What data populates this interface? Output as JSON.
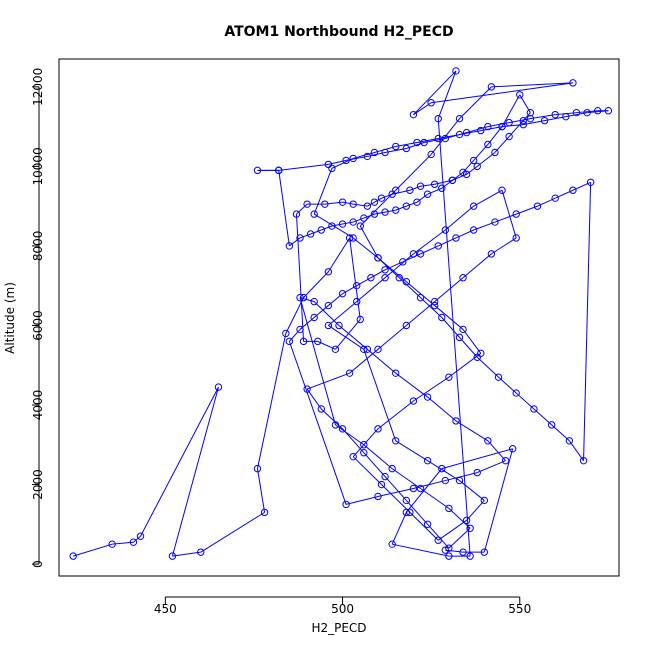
{
  "chart_data": {
    "type": "line",
    "title": "ATOM1 Northbound H2_PECD",
    "xlabel": "H2_PECD",
    "ylabel": "Altitude (m)",
    "xlim": [
      420,
      578
    ],
    "ylim": [
      -300,
      12700
    ],
    "xticks": [
      450,
      500,
      550
    ],
    "yticks": [
      0,
      2000,
      4000,
      6000,
      8000,
      10000,
      12000
    ],
    "marker": "open-circle",
    "grid": false,
    "series_color": "#0000ff",
    "series": [
      {
        "x": [
          424,
          435,
          441,
          443,
          465,
          452,
          460,
          478,
          476,
          484,
          489,
          496,
          502,
          505,
          498,
          493,
          489,
          487,
          490,
          495,
          500,
          503,
          507,
          509,
          511,
          514,
          519,
          522,
          526,
          531,
          535,
          538,
          543,
          547,
          551,
          553,
          550,
          545,
          541,
          537,
          534,
          531,
          528,
          524,
          521,
          518,
          515,
          512,
          509,
          506,
          503,
          500,
          497,
          494,
          491,
          488,
          485,
          482,
          476,
          482,
          496,
          501,
          507,
          512,
          518,
          523,
          529,
          535,
          541,
          547,
          553,
          560,
          566,
          572,
          575,
          569,
          563,
          557,
          551,
          545,
          539,
          533,
          527,
          521,
          515,
          509,
          503,
          497,
          492,
          503,
          510,
          516,
          522,
          528,
          533,
          538,
          544,
          549,
          554,
          559,
          564,
          568,
          570,
          565,
          560,
          555,
          549,
          543,
          537,
          532,
          527,
          522,
          517,
          512,
          508,
          504,
          500,
          496,
          492,
          488,
          485,
          501,
          510,
          520,
          529,
          538,
          546,
          541,
          532,
          524,
          515,
          507,
          499,
          492,
          488,
          498,
          506,
          514,
          522,
          530,
          536,
          530,
          524,
          518,
          512,
          506,
          500,
          494,
          490,
          502,
          510,
          518,
          526,
          534,
          542,
          549,
          545,
          537,
          529,
          520,
          512,
          504,
          496,
          506,
          515,
          524,
          533,
          540,
          535,
          527,
          519,
          511,
          503,
          510,
          520,
          530,
          539,
          534,
          526,
          518,
          510,
          505,
          515,
          525,
          533,
          542,
          565,
          525,
          520,
          532,
          527,
          536,
          530,
          514,
          518,
          528,
          548,
          540,
          534,
          529
        ],
        "y": [
          200,
          500,
          550,
          700,
          4450,
          200,
          300,
          1300,
          2400,
          5800,
          6700,
          7350,
          8200,
          6150,
          5400,
          5600,
          5600,
          8800,
          9050,
          9050,
          9100,
          9050,
          9000,
          9100,
          9200,
          9300,
          9400,
          9500,
          9550,
          9650,
          9800,
          10000,
          10350,
          10750,
          11150,
          11350,
          11800,
          11000,
          10550,
          10150,
          9850,
          9650,
          9450,
          9300,
          9100,
          9000,
          8900,
          8850,
          8800,
          8700,
          8600,
          8550,
          8500,
          8400,
          8300,
          8200,
          8000,
          9900,
          9900,
          9900,
          10050,
          10150,
          10250,
          10350,
          10450,
          10600,
          10700,
          10850,
          11000,
          11100,
          11200,
          11300,
          11350,
          11400,
          11400,
          11350,
          11250,
          11150,
          11050,
          11000,
          10900,
          10800,
          10700,
          10600,
          10500,
          10350,
          10200,
          9950,
          8800,
          8200,
          7700,
          7200,
          6700,
          6200,
          5700,
          5200,
          4700,
          4300,
          3900,
          3500,
          3100,
          2600,
          9600,
          9400,
          9200,
          9000,
          8800,
          8600,
          8400,
          8200,
          8000,
          7800,
          7600,
          7400,
          7200,
          7000,
          6800,
          6500,
          6200,
          5900,
          5600,
          1500,
          1700,
          1900,
          2100,
          2300,
          2600,
          3100,
          3600,
          4200,
          4800,
          5400,
          6000,
          6600,
          6700,
          3500,
          3000,
          2400,
          1900,
          1400,
          900,
          400,
          1000,
          1600,
          2200,
          2800,
          3400,
          3900,
          4400,
          4800,
          5400,
          6000,
          6600,
          7200,
          7800,
          8200,
          9400,
          9000,
          8400,
          7800,
          7200,
          6600,
          6000,
          5400,
          3100,
          2600,
          2100,
          1600,
          1100,
          600,
          1300,
          2000,
          2700,
          3400,
          4100,
          4700,
          5300,
          5900,
          6500,
          7100,
          7700,
          8500,
          9400,
          10300,
          11200,
          12000,
          12100,
          11600,
          11300,
          12400,
          11200,
          200,
          200,
          500,
          1300,
          2400,
          2900,
          300,
          300,
          350
        ]
      }
    ]
  }
}
